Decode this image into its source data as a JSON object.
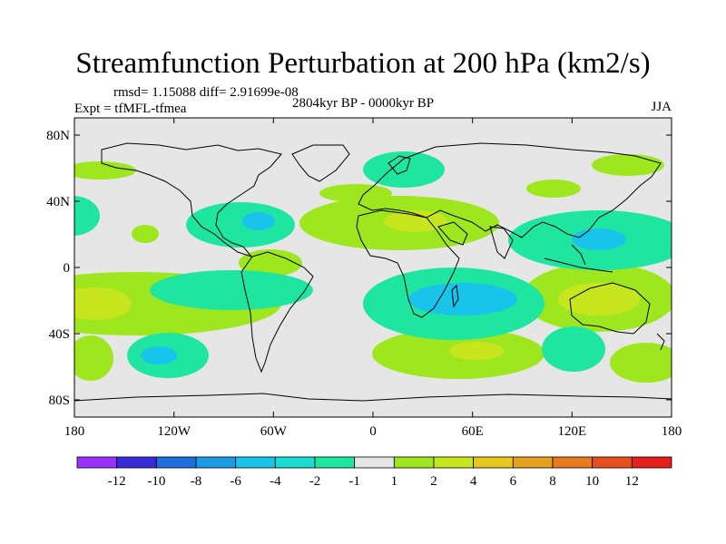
{
  "figure": {
    "title": "Streamfunction Perturbation at 200 hPa (km2/s)",
    "stats": "rmsd= 1.15088 diff= 2.91699e-08",
    "experiment": "Expt = tfMFL-tfmea",
    "period": "2804kyr BP - 0000kyr BP",
    "season": "JJA"
  },
  "axes": {
    "lat_ticks": [
      "80N",
      "40N",
      "0",
      "40S",
      "80S"
    ],
    "lon_ticks": [
      "180",
      "120W",
      "60W",
      "0",
      "60E",
      "120E",
      "180"
    ]
  },
  "colorbar": {
    "colors": [
      "#9b30ff",
      "#3a2bd9",
      "#1f6fe0",
      "#1c9be6",
      "#19c4ea",
      "#19dcd2",
      "#1ee6a0",
      "#e6e6e6",
      "#9ee61e",
      "#c8e61e",
      "#e6c81e",
      "#e6a01e",
      "#e67a1e",
      "#e6501e",
      "#e61e1e"
    ],
    "labels": [
      "-12",
      "-10",
      "-8",
      "-6",
      "-4",
      "-2",
      "-1",
      "1",
      "2",
      "4",
      "6",
      "8",
      "10",
      "12"
    ]
  }
}
